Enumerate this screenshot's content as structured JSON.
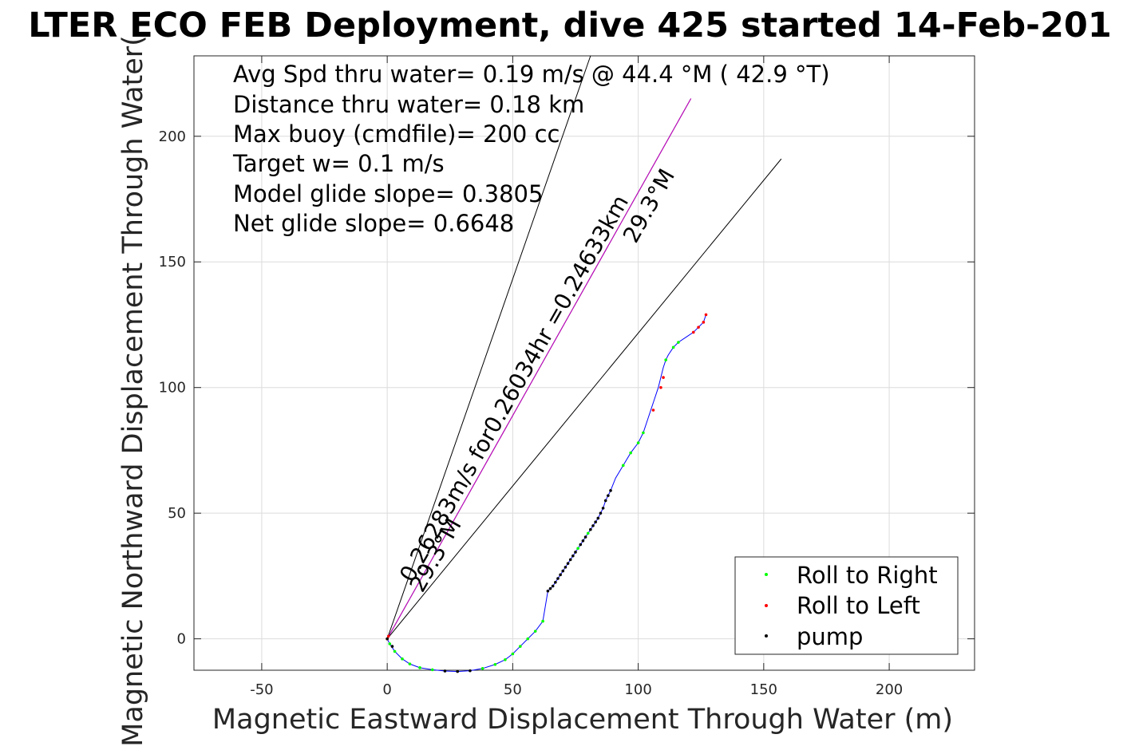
{
  "chart_data": {
    "type": "scatter",
    "title": "LTER ECO FEB Deployment, dive 425 started 14-Feb-201",
    "xlabel": "Magnetic Eastward Displacement Through Water (m)",
    "ylabel": "Magnetic Northward Displacement Through Water(",
    "xlim": [
      -77,
      234
    ],
    "ylim": [
      -12.5,
      232
    ],
    "xticks": [
      -50,
      0,
      50,
      100,
      150,
      200
    ],
    "yticks": [
      0,
      50,
      100,
      150,
      200
    ],
    "grid": true,
    "legend_position": "bottom-right",
    "stats": [
      "Avg Spd thru water=  0.19 m/s @  44.4 °M ( 42.9 °T)",
      "Distance thru water=  0.18 km",
      "Max buoy (cmdfile)= 200 cc",
      "Target w= 0.1 m/s",
      "Model glide slope= 0.3805",
      "Net glide slope= 0.6648"
    ],
    "reference_lines": [
      {
        "x": [
          0,
          81
        ],
        "y": [
          0,
          232
        ]
      },
      {
        "x": [
          0,
          121
        ],
        "y": [
          0,
          215
        ]
      },
      {
        "x": [
          0,
          157
        ],
        "y": [
          0,
          191
        ]
      }
    ],
    "annotations": [
      {
        "text": "0.26283m/s for0.26034hr =0.24633km",
        "x": 10,
        "y": 22,
        "angle": -60.5
      },
      {
        "text": "29.3°M",
        "x": 14,
        "y": 18,
        "angle": -60.5
      },
      {
        "text": "29.3°M",
        "x": 99,
        "y": 157,
        "angle": -60.5
      }
    ],
    "series": [
      {
        "name": "track",
        "color": "#0000ff",
        "x": [
          0,
          1,
          3,
          6,
          9,
          13,
          18,
          23,
          28,
          33,
          38,
          43,
          47,
          50,
          53,
          56,
          59,
          62,
          63,
          64,
          66,
          68,
          70,
          72,
          74,
          76,
          78,
          80,
          82,
          84,
          86,
          87,
          88,
          89,
          91,
          94,
          97,
          100,
          102,
          104,
          106,
          108,
          109,
          110,
          111,
          112,
          114,
          116,
          119,
          122,
          124,
          126,
          127
        ],
        "y": [
          0,
          -2,
          -5,
          -8,
          -10,
          -11.5,
          -12.3,
          -12.8,
          -13,
          -12.7,
          -11.8,
          -10.2,
          -8.3,
          -6,
          -3,
          0,
          3,
          7,
          13,
          19,
          21,
          24,
          27,
          30,
          33,
          36,
          39,
          42,
          45,
          48,
          52,
          55,
          57,
          59,
          64,
          69,
          74,
          78,
          82,
          88,
          94,
          100,
          104,
          108,
          111,
          113,
          116,
          118,
          120,
          122,
          124,
          126,
          129
        ]
      },
      {
        "name": "magenta-bearing",
        "color": "#cc00cc",
        "x": [
          0,
          121
        ],
        "y": [
          0,
          215
        ]
      }
    ],
    "markers": [
      {
        "name": "Roll to Right",
        "color": "#00ff00",
        "x": [
          1,
          3,
          6,
          9,
          13,
          18,
          38,
          43,
          47,
          50,
          53,
          56,
          59,
          62,
          76,
          80,
          94,
          97,
          100,
          102,
          111,
          114,
          116
        ],
        "y": [
          -2,
          -5,
          -8,
          -10,
          -11.5,
          -12.3,
          -11.8,
          -10.2,
          -8.3,
          -6,
          -3,
          0,
          3,
          7,
          36,
          42,
          69,
          74,
          78,
          82,
          111,
          116,
          118
        ]
      },
      {
        "name": "Roll to Left",
        "color": "#ff0000",
        "x": [
          0,
          0.5,
          106,
          109,
          110,
          122,
          124,
          126,
          127
        ],
        "y": [
          0,
          1,
          91,
          100,
          104,
          122,
          124,
          126,
          129
        ]
      },
      {
        "name": "pump",
        "color": "#000000",
        "x": [
          0,
          2,
          23,
          28,
          33,
          64,
          65,
          66,
          67,
          68,
          69,
          70,
          71,
          72,
          73,
          74,
          75,
          77,
          78,
          79,
          81,
          82,
          83,
          84,
          85,
          86,
          87,
          88,
          89
        ],
        "y": [
          0,
          -3,
          -12.8,
          -13,
          -12.7,
          19,
          20,
          21,
          22.5,
          24,
          25.5,
          27,
          28.5,
          30,
          31.5,
          33,
          34.5,
          37.5,
          39,
          40.5,
          43.5,
          45,
          46.5,
          48,
          50,
          52,
          55,
          57,
          59
        ]
      }
    ]
  }
}
